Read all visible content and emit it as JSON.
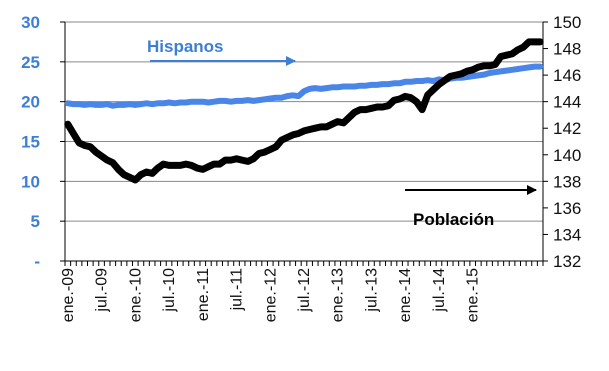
{
  "chart_data": {
    "type": "line",
    "x_labels": [
      "ene.-09",
      "jul.-09",
      "ene.-10",
      "jul.-10",
      "ene.-11",
      "jul.-11",
      "ene.-12",
      "jul.-12",
      "ene.-13",
      "jul.-13",
      "ene.-14",
      "jul.-14",
      "ene.-15"
    ],
    "left_axis": {
      "ylim": [
        0,
        30
      ],
      "ticks": [
        "-",
        "5",
        "10",
        "15",
        "20",
        "25",
        "30"
      ],
      "color": "#3c7fd6"
    },
    "right_axis": {
      "ylim": [
        132,
        150
      ],
      "ticks": [
        "132",
        "134",
        "136",
        "138",
        "140",
        "142",
        "144",
        "146",
        "148",
        "150"
      ],
      "color": "#111111"
    },
    "grid": "horizontal",
    "series": [
      {
        "name": "Hispanos",
        "axis": "left",
        "color": "#4a86e8",
        "values": [
          19.8,
          19.7,
          19.7,
          19.6,
          19.7,
          19.6,
          19.6,
          19.7,
          19.5,
          19.6,
          19.6,
          19.7,
          19.6,
          19.7,
          19.8,
          19.7,
          19.8,
          19.8,
          19.9,
          19.8,
          19.9,
          19.9,
          20.0,
          20.0,
          20.0,
          19.9,
          20.0,
          20.1,
          20.1,
          20.0,
          20.1,
          20.1,
          20.2,
          20.1,
          20.2,
          20.3,
          20.4,
          20.5,
          20.5,
          20.7,
          20.8,
          20.7,
          21.3,
          21.6,
          21.7,
          21.6,
          21.7,
          21.8,
          21.8,
          21.9,
          21.9,
          21.9,
          22.0,
          22.0,
          22.1,
          22.1,
          22.2,
          22.2,
          22.3,
          22.3,
          22.5,
          22.5,
          22.6,
          22.6,
          22.7,
          22.6,
          22.8,
          22.7,
          22.9,
          23.0,
          23.0,
          23.1,
          23.2,
          23.3,
          23.4,
          23.6,
          23.7,
          23.8,
          23.9,
          24.0,
          24.1,
          24.2,
          24.3,
          24.4,
          24.4
        ]
      },
      {
        "name": "Población",
        "axis": "right",
        "color": "#000000",
        "values": [
          142.3,
          141.6,
          140.9,
          140.7,
          140.6,
          140.2,
          139.9,
          139.6,
          139.4,
          138.9,
          138.5,
          138.3,
          138.1,
          138.5,
          138.7,
          138.6,
          139.0,
          139.3,
          139.2,
          139.2,
          139.2,
          139.3,
          139.2,
          139.0,
          138.9,
          139.1,
          139.3,
          139.3,
          139.6,
          139.6,
          139.7,
          139.6,
          139.5,
          139.7,
          140.1,
          140.2,
          140.4,
          140.6,
          141.1,
          141.3,
          141.5,
          141.6,
          141.8,
          141.9,
          142.0,
          142.1,
          142.1,
          142.3,
          142.5,
          142.4,
          142.8,
          143.2,
          143.4,
          143.4,
          143.5,
          143.6,
          143.6,
          143.7,
          144.1,
          144.2,
          144.4,
          144.3,
          144.0,
          143.4,
          144.5,
          144.9,
          145.3,
          145.6,
          145.9,
          146.0,
          146.1,
          146.3,
          146.4,
          146.6,
          146.7,
          146.7,
          146.8,
          147.4,
          147.5,
          147.6,
          147.9,
          148.1,
          148.5,
          148.5,
          148.5
        ]
      }
    ],
    "annotations": [
      {
        "text": "Hispanos",
        "color": "#3c7fd6"
      },
      {
        "text": "Población",
        "color": "#000000"
      }
    ]
  }
}
